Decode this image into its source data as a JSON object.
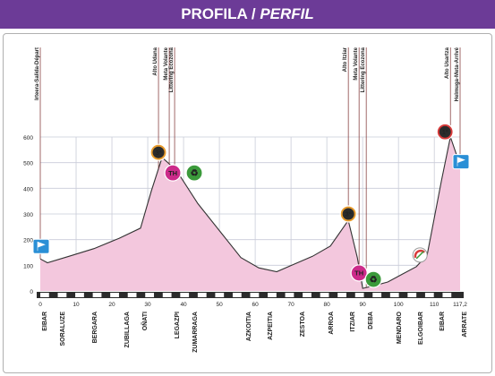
{
  "header": {
    "title_main": "PROFILA / ",
    "title_italic": "PERFIL",
    "bg_color": "#6c3b97"
  },
  "chart_data": {
    "type": "area",
    "title": "PROFILA / PERFIL",
    "xlim": [
      0,
      117.2
    ],
    "ylim": [
      0,
      600
    ],
    "x_ticks": [
      0,
      10,
      20,
      30,
      40,
      50,
      60,
      70,
      80,
      90,
      100,
      110
    ],
    "x_end_label": "117,2",
    "y_ticks": [
      0,
      100,
      200,
      300,
      400,
      500,
      600
    ],
    "grid": true,
    "fill_color": "#f3c7dd",
    "line_color": "#333333",
    "profile": {
      "x": [
        0,
        2,
        8,
        15,
        22,
        28,
        31,
        34,
        38,
        44,
        50,
        56,
        61,
        66,
        71,
        76,
        81,
        86,
        88.5,
        90,
        93,
        97,
        101,
        105,
        108,
        112,
        114.5,
        117.2
      ],
      "y": [
        125,
        110,
        135,
        165,
        205,
        245,
        390,
        520,
        470,
        340,
        235,
        130,
        90,
        75,
        105,
        135,
        175,
        275,
        130,
        10,
        20,
        35,
        65,
        95,
        140,
        430,
        600,
        490
      ]
    },
    "top_labels": [
      {
        "text": "Irteera-Salida-Départ",
        "x": 0
      },
      {
        "text": "Alto Udana",
        "x": 33
      },
      {
        "text": "Meta Volante",
        "x": 36
      },
      {
        "text": "Littering Ecozona",
        "x": 37.5
      },
      {
        "text": "Alto Itziar",
        "x": 86
      },
      {
        "text": "Meta Volante",
        "x": 89
      },
      {
        "text": "Littering Ecozona",
        "x": 91
      },
      {
        "text": "Alto Usartza",
        "x": 114.5
      },
      {
        "text": "Helmuga-Meta-Arrivé",
        "x": 117.2
      }
    ],
    "towns": [
      {
        "text": "EIBAR",
        "x": 1
      },
      {
        "text": "SORALUZE",
        "x": 6
      },
      {
        "text": "BERGARA",
        "x": 15
      },
      {
        "text": "ZUBILLAGA",
        "x": 24
      },
      {
        "text": "OÑATI",
        "x": 29
      },
      {
        "text": "LEGAZPI",
        "x": 38
      },
      {
        "text": "ZUMARRAGA",
        "x": 43
      },
      {
        "text": "AZKOITIA",
        "x": 58
      },
      {
        "text": "AZPEITIA",
        "x": 64
      },
      {
        "text": "ZESTOA",
        "x": 73
      },
      {
        "text": "ARROA",
        "x": 81
      },
      {
        "text": "ITZIAR",
        "x": 87
      },
      {
        "text": "DEBA",
        "x": 92
      },
      {
        "text": "MENDARO",
        "x": 100
      },
      {
        "text": "ELGOIBAR",
        "x": 106
      },
      {
        "text": "EIBAR",
        "x": 112
      },
      {
        "text": "ARRATE",
        "x": 118
      }
    ],
    "markers": [
      {
        "kind": "start-flag",
        "x": 0,
        "y": 170,
        "color": "#2a8fd6"
      },
      {
        "kind": "climb",
        "text": "3ª",
        "x": 33,
        "y": 540,
        "color": "#e89b2c"
      },
      {
        "kind": "sprint",
        "text": "TH",
        "x": 37,
        "y": 460,
        "color": "#cc2b8a"
      },
      {
        "kind": "eco",
        "text": "♻",
        "x": 43,
        "y": 460,
        "color": "#3b9a3b"
      },
      {
        "kind": "climb",
        "text": "3ª",
        "x": 86,
        "y": 300,
        "color": "#e89b2c"
      },
      {
        "kind": "sprint",
        "text": "TH",
        "x": 89,
        "y": 70,
        "color": "#cc2b8a"
      },
      {
        "kind": "eco",
        "text": "♻",
        "x": 93,
        "y": 45,
        "color": "#3b9a3b"
      },
      {
        "kind": "feed",
        "text": "",
        "x": 106,
        "y": 140,
        "color": "#d93a3a"
      },
      {
        "kind": "climb",
        "text": "1ª",
        "x": 113,
        "y": 620,
        "color": "#d93a3a"
      },
      {
        "kind": "finish-flag",
        "x": 117.2,
        "y": 500,
        "color": "#2a8fd6"
      }
    ]
  }
}
